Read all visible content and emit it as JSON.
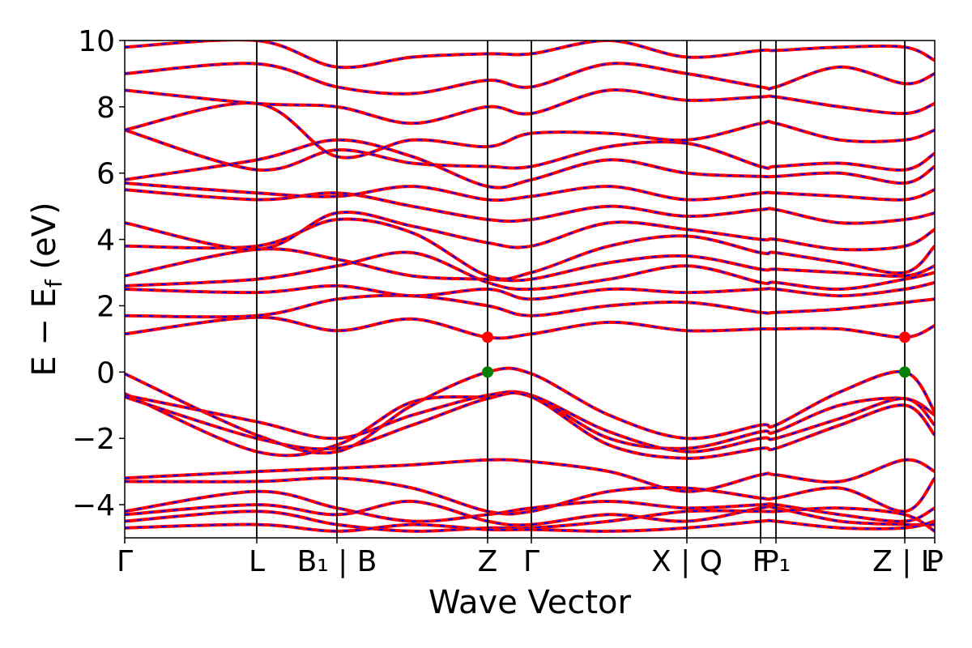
{
  "chart_data": {
    "type": "line",
    "title": "",
    "xlabel": "Wave Vector",
    "ylabel_parts": {
      "main": "E − E",
      "sub": "f",
      "unit": " (eV)"
    },
    "ylim": [
      -5,
      10
    ],
    "yticks": [
      -4,
      -2,
      0,
      2,
      4,
      6,
      8,
      10
    ],
    "ytick_labels": [
      "−4",
      "−2",
      "0",
      "2",
      "4",
      "6",
      "8",
      "10"
    ],
    "xlim": [
      0,
      1
    ],
    "kpoints": [
      {
        "label": "Γ",
        "x": 0.0
      },
      {
        "label": "L",
        "x": 0.163
      },
      {
        "label": "B₁ | B",
        "x": 0.262
      },
      {
        "label": "Z",
        "x": 0.448
      },
      {
        "label": "Γ",
        "x": 0.502
      },
      {
        "label": "X | Q",
        "x": 0.694
      },
      {
        "label": "F",
        "x": 0.785
      },
      {
        "label": "P₁",
        "x": 0.804
      },
      {
        "label": "Z | L",
        "x": 0.963
      },
      {
        "label": "P",
        "x": 1.0
      }
    ],
    "band_style": {
      "outer_color": "#ff0000",
      "inner_color": "#0000ff"
    },
    "markers": [
      {
        "name": "cbm",
        "x": 0.448,
        "y": 1.05,
        "color": "#ff0000"
      },
      {
        "name": "vbm",
        "x": 0.448,
        "y": 0.0,
        "color": "#008000"
      },
      {
        "name": "cbm",
        "x": 0.963,
        "y": 1.05,
        "color": "#ff0000"
      },
      {
        "name": "vbm",
        "x": 0.963,
        "y": 0.0,
        "color": "#008000"
      }
    ],
    "kx": [
      0.0,
      0.163,
      0.262,
      0.355,
      0.448,
      0.502,
      0.598,
      0.694,
      0.785,
      0.804,
      0.883,
      0.963,
      1.0
    ],
    "series": [
      {
        "y": [
          -0.05,
          -1.9,
          -2.4,
          -1.0,
          0.0,
          -0.05,
          -1.3,
          -2.0,
          -1.6,
          -1.6,
          -0.6,
          0.0,
          -1.2
        ]
      },
      {
        "y": [
          -0.65,
          -2.4,
          -2.2,
          -0.9,
          -0.75,
          -0.7,
          -2.0,
          -2.3,
          -1.8,
          -1.8,
          -1.0,
          -0.8,
          -1.3
        ]
      },
      {
        "y": [
          -0.7,
          -1.5,
          -2.0,
          -1.3,
          -0.7,
          -0.7,
          -1.8,
          -2.4,
          -2.0,
          -2.0,
          -1.4,
          -0.8,
          -1.6
        ]
      },
      {
        "y": [
          -0.75,
          -2.0,
          -2.3,
          -1.6,
          -0.8,
          -0.75,
          -2.2,
          -2.6,
          -2.3,
          -2.3,
          -1.6,
          -1.0,
          -1.9
        ]
      },
      {
        "y": [
          -3.2,
          -3.0,
          -2.9,
          -2.8,
          -2.65,
          -2.7,
          -3.0,
          -3.6,
          -3.1,
          -3.1,
          -3.3,
          -2.65,
          -3.0
        ]
      },
      {
        "y": [
          -3.3,
          -3.3,
          -3.2,
          -3.5,
          -4.2,
          -4.2,
          -3.6,
          -3.5,
          -3.8,
          -3.8,
          -3.5,
          -4.2,
          -3.2
        ]
      },
      {
        "y": [
          -4.2,
          -3.6,
          -4.1,
          -4.5,
          -4.3,
          -4.1,
          -3.9,
          -4.1,
          -4.0,
          -4.0,
          -4.3,
          -4.5,
          -4.1
        ]
      },
      {
        "y": [
          -4.3,
          -4.0,
          -4.3,
          -3.9,
          -4.5,
          -4.6,
          -4.3,
          -4.5,
          -4.1,
          -4.1,
          -4.5,
          -4.6,
          -4.6
        ]
      },
      {
        "y": [
          -4.5,
          -4.2,
          -4.6,
          -4.8,
          -4.7,
          -4.7,
          -4.5,
          -4.2,
          -4.2,
          -4.2,
          -4.1,
          -4.3,
          -4.8
        ]
      },
      {
        "y": [
          -4.7,
          -4.6,
          -4.8,
          -4.6,
          -4.75,
          -4.75,
          -4.8,
          -4.7,
          -4.5,
          -4.5,
          -4.7,
          -4.7,
          -4.5
        ]
      },
      {
        "y": [
          1.15,
          1.65,
          1.25,
          1.6,
          1.05,
          1.15,
          1.5,
          1.25,
          1.3,
          1.3,
          1.3,
          1.05,
          1.4
        ]
      },
      {
        "y": [
          1.7,
          1.7,
          2.2,
          2.3,
          2.0,
          1.7,
          2.0,
          2.1,
          1.8,
          1.8,
          1.9,
          2.1,
          2.2
        ]
      },
      {
        "y": [
          2.5,
          2.4,
          2.6,
          2.3,
          2.5,
          2.2,
          2.5,
          2.4,
          2.5,
          2.5,
          2.3,
          2.5,
          2.7
        ]
      },
      {
        "y": [
          2.6,
          2.8,
          3.2,
          3.6,
          2.7,
          2.5,
          2.8,
          3.2,
          2.7,
          2.7,
          2.5,
          2.8,
          3.0
        ]
      },
      {
        "y": [
          2.9,
          3.7,
          3.4,
          2.9,
          2.8,
          2.8,
          3.3,
          3.5,
          3.1,
          3.1,
          3.0,
          2.9,
          3.2
        ]
      },
      {
        "y": [
          3.8,
          3.8,
          4.6,
          4.2,
          2.9,
          3.0,
          3.8,
          4.1,
          3.6,
          3.6,
          3.3,
          3.0,
          3.8
        ]
      },
      {
        "y": [
          4.5,
          3.7,
          4.8,
          4.4,
          3.9,
          3.8,
          4.5,
          4.3,
          4.0,
          4.0,
          3.7,
          3.8,
          4.3
        ]
      },
      {
        "y": [
          5.5,
          5.2,
          5.4,
          5.0,
          4.6,
          4.6,
          5.0,
          4.7,
          4.9,
          4.9,
          4.5,
          4.6,
          4.8
        ]
      },
      {
        "y": [
          5.7,
          5.4,
          5.3,
          5.6,
          5.2,
          5.3,
          5.6,
          5.2,
          5.4,
          5.4,
          5.3,
          5.2,
          5.5
        ]
      },
      {
        "y": [
          5.8,
          6.4,
          7.0,
          6.5,
          5.6,
          5.8,
          6.4,
          6.0,
          5.9,
          5.9,
          6.0,
          5.7,
          6.2
        ]
      },
      {
        "y": [
          7.3,
          6.1,
          6.7,
          6.3,
          6.2,
          6.2,
          6.8,
          6.9,
          6.2,
          6.2,
          6.3,
          6.1,
          6.6
        ]
      },
      {
        "y": [
          7.3,
          8.1,
          6.5,
          7.0,
          6.8,
          7.2,
          7.2,
          7.0,
          7.5,
          7.5,
          7.0,
          7.0,
          7.3
        ]
      },
      {
        "y": [
          8.5,
          8.1,
          8.0,
          7.5,
          8.0,
          7.8,
          8.5,
          8.2,
          8.3,
          8.3,
          8.0,
          7.8,
          8.1
        ]
      },
      {
        "y": [
          9.0,
          9.3,
          8.6,
          8.4,
          8.8,
          8.6,
          9.3,
          9.0,
          8.6,
          8.6,
          9.2,
          8.7,
          9.0
        ]
      },
      {
        "y": [
          9.8,
          10.0,
          9.2,
          9.5,
          9.6,
          9.6,
          10.0,
          9.5,
          9.7,
          9.7,
          9.8,
          9.8,
          9.4
        ]
      }
    ]
  }
}
